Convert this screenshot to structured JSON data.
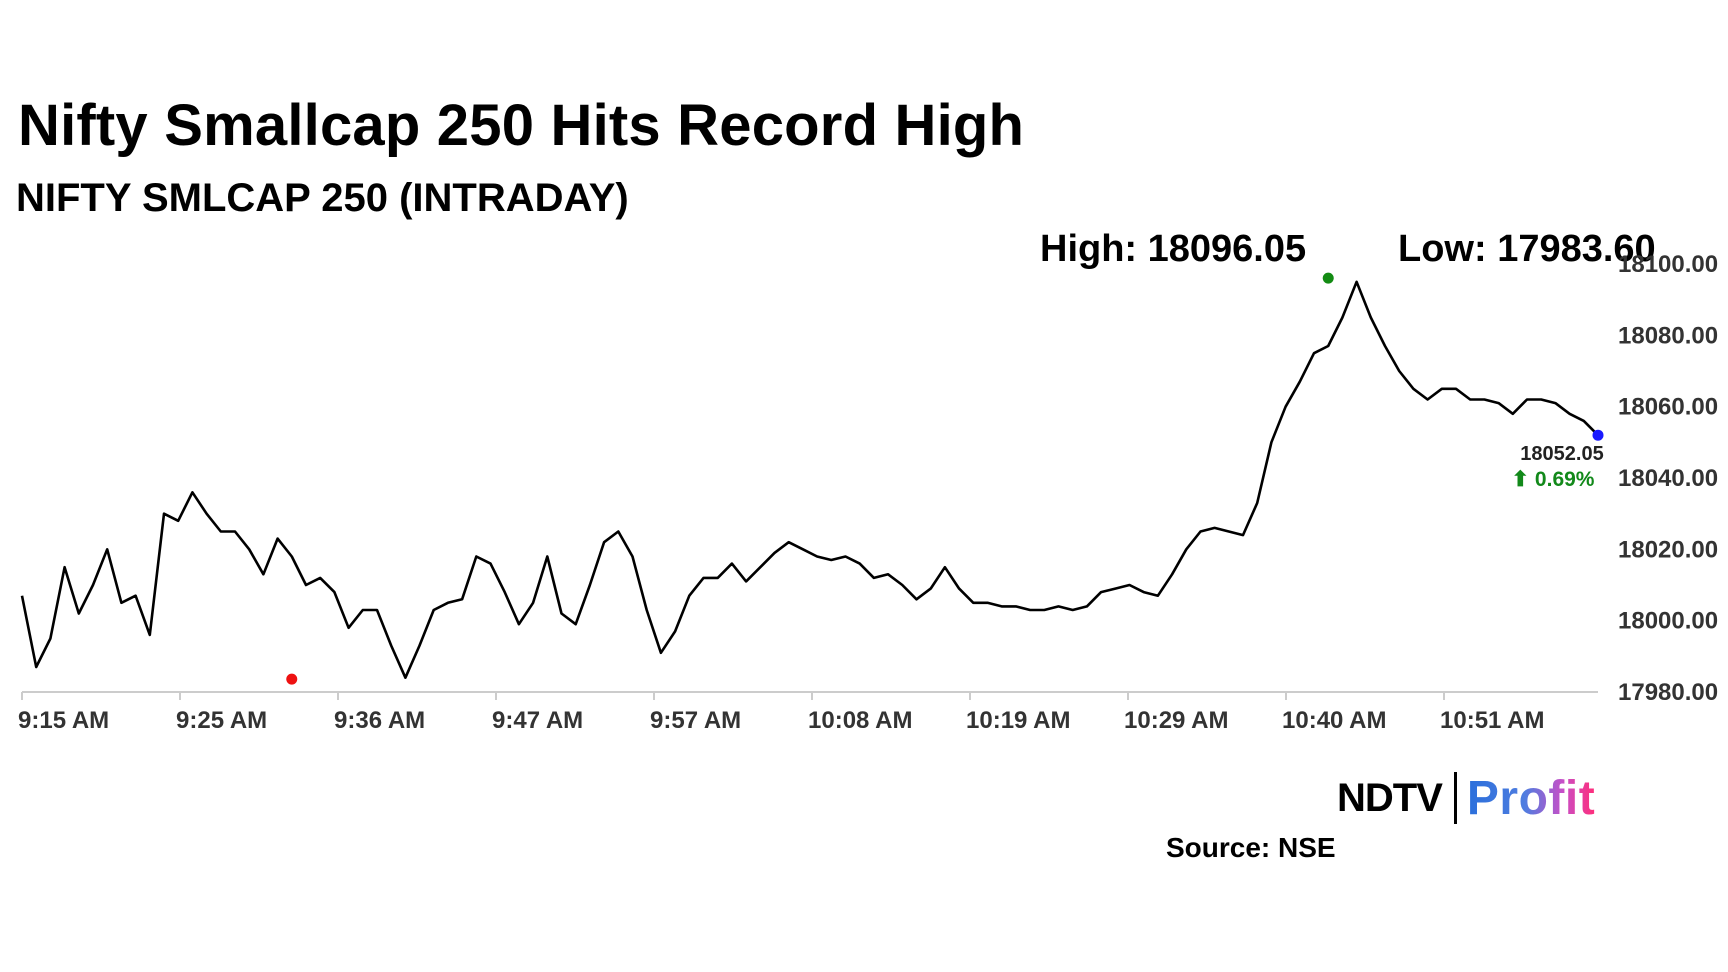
{
  "chart_data": {
    "type": "line",
    "title": "Nifty Smallcap 250 Hits Record High",
    "subtitle": "NIFTY SMLCAP 250 (INTRADAY)",
    "x_tick_labels": [
      "9:15 AM",
      "9:25 AM",
      "9:36 AM",
      "9:47 AM",
      "9:57 AM",
      "10:08 AM",
      "10:19 AM",
      "10:29 AM",
      "10:40 AM",
      "10:51 AM"
    ],
    "y_tick_labels": [
      "18100.00",
      "18080.00",
      "18060.00",
      "18040.00",
      "18020.00",
      "18000.00",
      "17980.00"
    ],
    "ylim": [
      17980,
      18100
    ],
    "y_ticks": [
      18100,
      18080,
      18060,
      18040,
      18020,
      18000,
      17980
    ],
    "grid": false,
    "series": [
      {
        "x": [
          0,
          2,
          4,
          6,
          8,
          10,
          12,
          14,
          16,
          18,
          20,
          22,
          24,
          26,
          28,
          30,
          32,
          34,
          36,
          38,
          40,
          42,
          44,
          46,
          48,
          50,
          52,
          54,
          56,
          58,
          60,
          62,
          64,
          66,
          68,
          70,
          72,
          74,
          76,
          78,
          80,
          82,
          84,
          86,
          88,
          90,
          92,
          94,
          96,
          98,
          100,
          102,
          104,
          106,
          108,
          110,
          112,
          114,
          116,
          118,
          120,
          122,
          124,
          126,
          128,
          130,
          132,
          134,
          136,
          138,
          140,
          142,
          144,
          146,
          148,
          150,
          152,
          154,
          156,
          158,
          160,
          162,
          164,
          166,
          168,
          170,
          172,
          174,
          176,
          178,
          180,
          182,
          184,
          186,
          188,
          190,
          192,
          194,
          196,
          198,
          200,
          202,
          204,
          206,
          208,
          210,
          212,
          214,
          216,
          218,
          220,
          222
        ],
        "values": [
          18007,
          17987,
          17995,
          18015,
          18002,
          18010,
          18020,
          18005,
          18007,
          17996,
          18030,
          18028,
          18036,
          18030,
          18025,
          18025,
          18020,
          18013,
          18023,
          18018,
          18010,
          18012,
          18008,
          17998,
          18003,
          18003,
          17993,
          17984,
          17993,
          18003,
          18005,
          18006,
          18018,
          18016,
          18008,
          17999,
          18005,
          18018,
          18002,
          17999,
          18010,
          18022,
          18025,
          18018,
          18003,
          17991,
          17997,
          18007,
          18012,
          18012,
          18016,
          18011,
          18015,
          18019,
          18022,
          18020,
          18018,
          18017,
          18018,
          18016,
          18012,
          18013,
          18010,
          18006,
          18009,
          18015,
          18009,
          18005,
          18005,
          18004,
          18004,
          18003,
          18003,
          18004,
          18003,
          18004,
          18008,
          18009,
          18010,
          18008,
          18007,
          18013,
          18020,
          18025,
          18026,
          18025,
          18024,
          18033,
          18050,
          18060,
          18067,
          18075,
          18077,
          18085,
          18095,
          18085,
          18077,
          18070,
          18065,
          18062,
          18065,
          18065,
          18062,
          18062,
          18061,
          18058,
          18062,
          18062,
          18061,
          18058,
          18056,
          18052
        ],
        "line_color": "#000000"
      }
    ],
    "high_label": "High: 18096.05",
    "low_label": "Low: 17983.60",
    "high_value": 18096.05,
    "low_value": 17983.6,
    "high_x": 184,
    "low_x": 38,
    "high_marker_color": "#138b13",
    "low_marker_color": "#ee1111",
    "last_marker_color": "#1a1aff",
    "last_value_label": "18052.05",
    "change_label": "⬆ 0.69%",
    "change_color": "#12891a"
  },
  "branding": {
    "logo_ndtv": "NDTV",
    "logo_profit": "Profit",
    "source": "Source: NSE"
  }
}
